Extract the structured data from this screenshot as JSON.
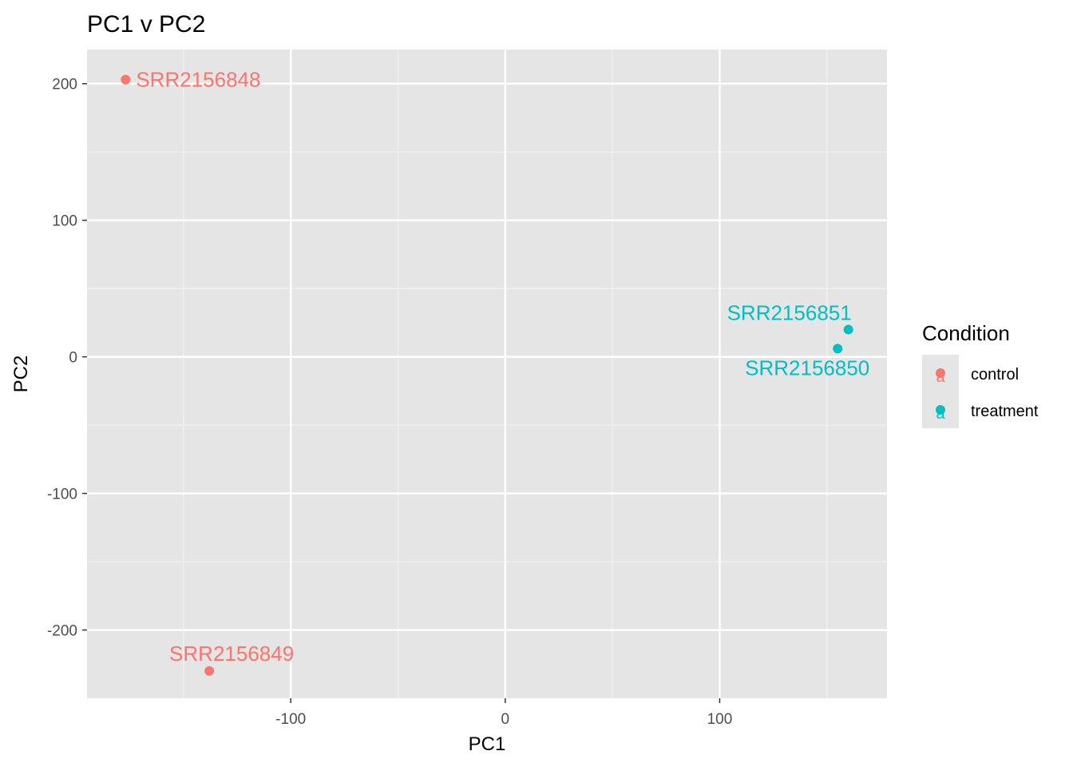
{
  "chart_data": {
    "type": "scatter",
    "title": "PC1 v PC2",
    "xlabel": "PC1",
    "ylabel": "PC2",
    "xlim": [
      -195,
      178
    ],
    "ylim": [
      -250,
      225
    ],
    "x_ticks": [
      -100,
      0,
      100
    ],
    "x_tick_labels": [
      "-100",
      "0",
      "100"
    ],
    "x_minor": [
      -150,
      -50,
      50,
      150
    ],
    "y_ticks": [
      -200,
      -100,
      0,
      100,
      200
    ],
    "y_tick_labels": [
      "-200",
      "-100",
      "0",
      "100",
      "200"
    ],
    "y_minor": [
      -150,
      -50,
      50,
      150
    ],
    "grid": true,
    "legend": {
      "title": "Condition",
      "placement": "right",
      "entries": [
        {
          "name": "control",
          "color": "#F8766D"
        },
        {
          "name": "treatment",
          "color": "#00BFC4"
        }
      ]
    },
    "series": [
      {
        "name": "control",
        "color": "#F8766D",
        "points": [
          {
            "label": "SRR2156848",
            "x": -177,
            "y": 203,
            "label_pos": "right"
          },
          {
            "label": "SRR2156849",
            "x": -138,
            "y": -230,
            "label_pos": "above"
          }
        ]
      },
      {
        "name": "treatment",
        "color": "#00BFC4",
        "points": [
          {
            "label": "SRR2156851",
            "x": 160,
            "y": 20,
            "label_pos": "above-left"
          },
          {
            "label": "SRR2156850",
            "x": 155,
            "y": 6,
            "label_pos": "below-left"
          }
        ]
      }
    ]
  }
}
